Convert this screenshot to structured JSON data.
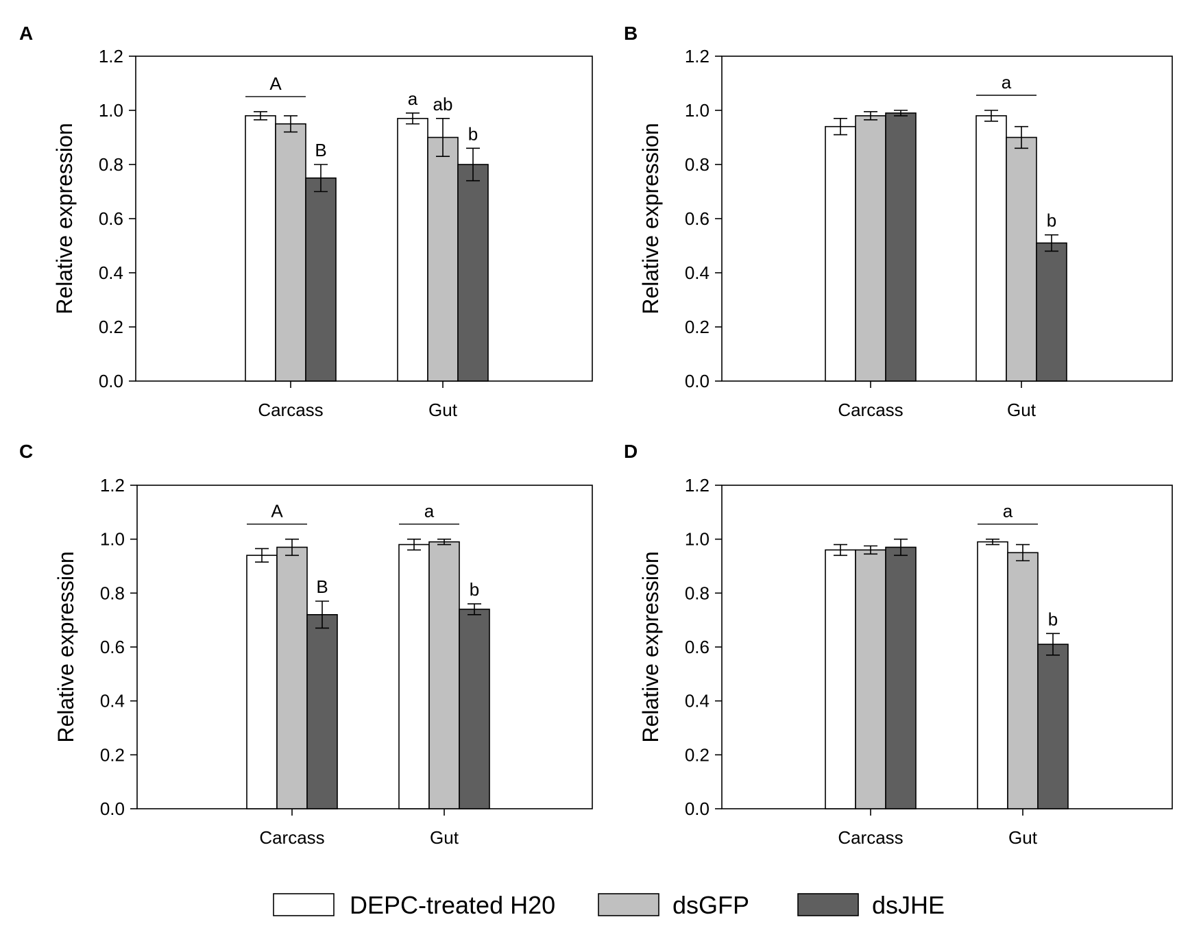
{
  "chart_data": [
    {
      "type": "bar",
      "panel": "A",
      "categories": [
        "Carcass",
        "Gut"
      ],
      "series": [
        {
          "name": "DEPC-treated H20",
          "values": [
            0.98,
            0.97
          ],
          "errors": [
            0.015,
            0.02
          ]
        },
        {
          "name": "dsGFP",
          "values": [
            0.95,
            0.9
          ],
          "errors": [
            0.03,
            0.07
          ]
        },
        {
          "name": "dsJHE",
          "values": [
            0.75,
            0.8
          ],
          "errors": [
            0.05,
            0.06
          ]
        }
      ],
      "ylabel": "Relative expression",
      "ylim": [
        0,
        1.2
      ],
      "yticks": [
        "0.0",
        "0.2",
        "0.4",
        "0.6",
        "0.8",
        "1.0",
        "1.2"
      ],
      "annotations": [
        {
          "category": 0,
          "text": "A",
          "bracket": true,
          "from": 0,
          "to": 1
        },
        {
          "category": 0,
          "series": 2,
          "text": "B"
        },
        {
          "category": 1,
          "series": 0,
          "text": "a"
        },
        {
          "category": 1,
          "series": 1,
          "text": "ab"
        },
        {
          "category": 1,
          "series": 2,
          "text": "b"
        }
      ]
    },
    {
      "type": "bar",
      "panel": "B",
      "categories": [
        "Carcass",
        "Gut"
      ],
      "series": [
        {
          "name": "DEPC-treated H20",
          "values": [
            0.94,
            0.98
          ],
          "errors": [
            0.03,
            0.02
          ]
        },
        {
          "name": "dsGFP",
          "values": [
            0.98,
            0.9
          ],
          "errors": [
            0.015,
            0.04
          ]
        },
        {
          "name": "dsJHE",
          "values": [
            0.99,
            0.51
          ],
          "errors": [
            0.01,
            0.03
          ]
        }
      ],
      "ylabel": "Relative expression",
      "ylim": [
        0,
        1.2
      ],
      "yticks": [
        "0.0",
        "0.2",
        "0.4",
        "0.6",
        "0.8",
        "1.0",
        "1.2"
      ],
      "annotations": [
        {
          "category": 1,
          "text": "a",
          "bracket": true,
          "from": 0,
          "to": 1
        },
        {
          "category": 1,
          "series": 2,
          "text": "b"
        }
      ]
    },
    {
      "type": "bar",
      "panel": "C",
      "categories": [
        "Carcass",
        "Gut"
      ],
      "series": [
        {
          "name": "DEPC-treated H20",
          "values": [
            0.94,
            0.98
          ],
          "errors": [
            0.025,
            0.02
          ]
        },
        {
          "name": "dsGFP",
          "values": [
            0.97,
            0.99
          ],
          "errors": [
            0.03,
            0.01
          ]
        },
        {
          "name": "dsJHE",
          "values": [
            0.72,
            0.74
          ],
          "errors": [
            0.05,
            0.02
          ]
        }
      ],
      "ylabel": "Relative expression",
      "ylim": [
        0,
        1.2
      ],
      "yticks": [
        "0.0",
        "0.2",
        "0.4",
        "0.6",
        "0.8",
        "1.0",
        "1.2"
      ],
      "annotations": [
        {
          "category": 0,
          "text": "A",
          "bracket": true,
          "from": 0,
          "to": 1
        },
        {
          "category": 0,
          "series": 2,
          "text": "B"
        },
        {
          "category": 1,
          "text": "a",
          "bracket": true,
          "from": 0,
          "to": 1
        },
        {
          "category": 1,
          "series": 2,
          "text": "b"
        }
      ]
    },
    {
      "type": "bar",
      "panel": "D",
      "categories": [
        "Carcass",
        "Gut"
      ],
      "series": [
        {
          "name": "DEPC-treated H20",
          "values": [
            0.96,
            0.99
          ],
          "errors": [
            0.02,
            0.01
          ]
        },
        {
          "name": "dsGFP",
          "values": [
            0.96,
            0.95
          ],
          "errors": [
            0.015,
            0.03
          ]
        },
        {
          "name": "dsJHE",
          "values": [
            0.97,
            0.61
          ],
          "errors": [
            0.03,
            0.04
          ]
        }
      ],
      "ylabel": "Relative expression",
      "ylim": [
        0,
        1.2
      ],
      "yticks": [
        "0.0",
        "0.2",
        "0.4",
        "0.6",
        "0.8",
        "1.0",
        "1.2"
      ],
      "annotations": [
        {
          "category": 1,
          "text": "a",
          "bracket": true,
          "from": 0,
          "to": 1
        },
        {
          "category": 1,
          "series": 2,
          "text": "b"
        }
      ]
    }
  ],
  "legend": {
    "items": [
      {
        "label": "DEPC-treated H20",
        "color": "#ffffff"
      },
      {
        "label": "dsGFP",
        "color": "#c0c0c0"
      },
      {
        "label": "dsJHE",
        "color": "#5f5f5f"
      }
    ]
  },
  "colors": [
    "#ffffff",
    "#c0c0c0",
    "#5f5f5f"
  ]
}
